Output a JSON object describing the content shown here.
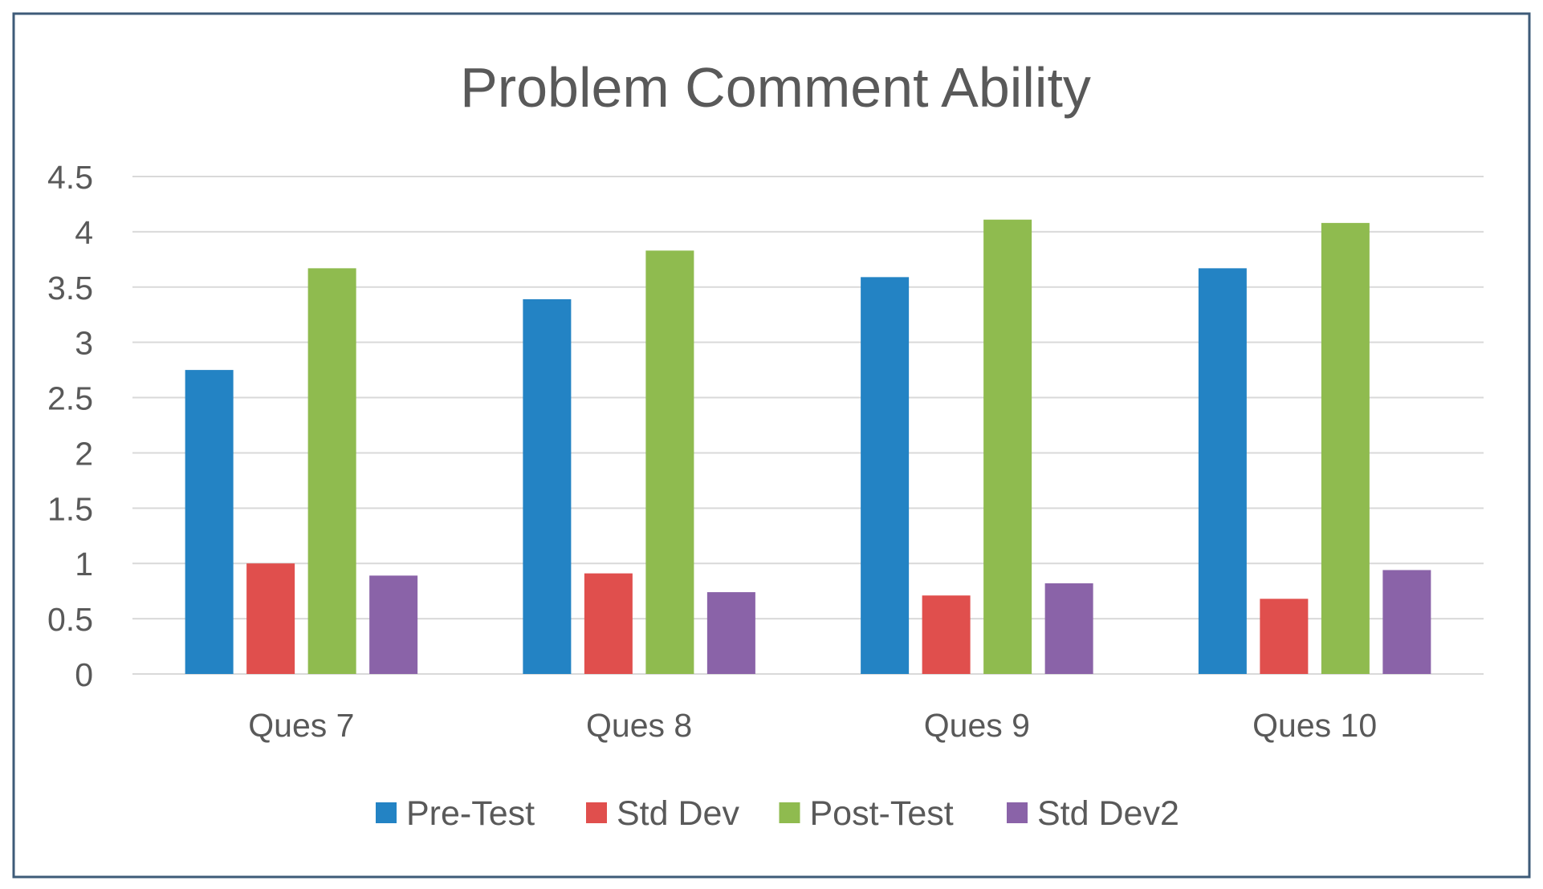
{
  "chart_data": {
    "type": "bar",
    "title": "Problem Comment Ability",
    "xlabel": "",
    "ylabel": "",
    "ylim": [
      0,
      4.5
    ],
    "yticks": [
      "0",
      "0.5",
      "1",
      "1.5",
      "2",
      "2.5",
      "3",
      "3.5",
      "4",
      "4.5"
    ],
    "grid": true,
    "legend_position": "bottom",
    "categories": [
      "Ques 7",
      "Ques 8",
      "Ques 9",
      "Ques 10"
    ],
    "series": [
      {
        "name": "Pre-Test",
        "color": "#2383C4",
        "values": [
          2.75,
          3.39,
          3.59,
          3.67
        ]
      },
      {
        "name": "Std Dev",
        "color": "#E04F4D",
        "values": [
          1.0,
          0.91,
          0.71,
          0.68
        ]
      },
      {
        "name": "Post-Test",
        "color": "#8FBB4F",
        "values": [
          3.67,
          3.83,
          4.11,
          4.08
        ]
      },
      {
        "name": "Std Dev2",
        "color": "#8A63A8",
        "values": [
          0.89,
          0.74,
          0.82,
          0.94
        ]
      }
    ]
  }
}
